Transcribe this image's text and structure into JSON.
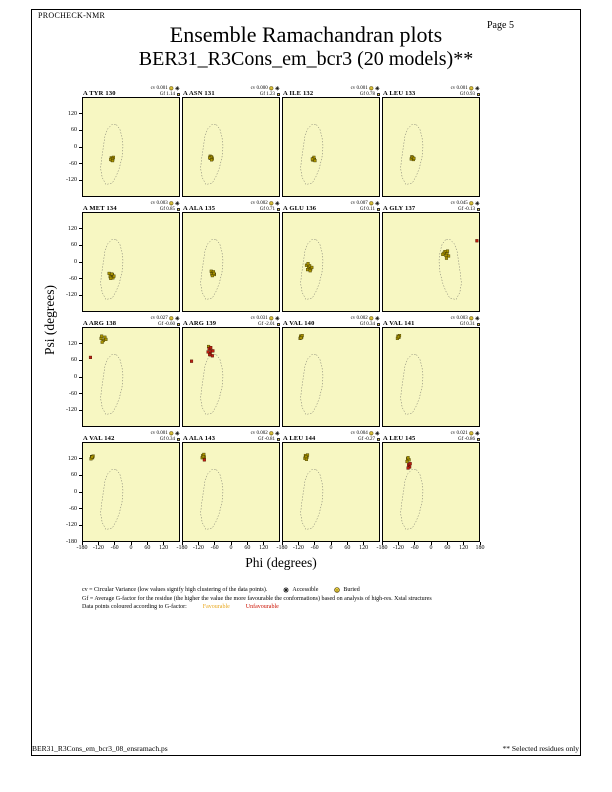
{
  "page": {
    "header_label": "PROCHECK-NMR",
    "page_number": "Page 5",
    "title": "Ensemble Ramachandran plots",
    "subtitle": "BER31_R3Cons_em_bcr3 (20 models)**",
    "footer_left": "BER31_R3Cons_em_bcr3_08_ensramach.ps",
    "footer_right": "** Selected residues only"
  },
  "axes": {
    "x_label": "Phi (degrees)",
    "y_label": "Psi (degrees)",
    "x_ticks": [
      -180,
      -120,
      -60,
      0,
      60,
      120
    ],
    "x_final_tick": 180,
    "y_ticks": [
      120,
      60,
      0,
      -60,
      -120
    ],
    "y_final_tick": -180
  },
  "stats_labels": {
    "cv": "cv",
    "gf": "Gf"
  },
  "legend": {
    "cv_line": "cv = Circular Variance (low values signify high clustering of the data points).",
    "accessible_label": "Accessible",
    "buried_label": "Buried",
    "gf_line": "Gf = Average G-factor for the residue (the higher the value the more favourable the conformations)  based on analysis of high-res. Xstal structures",
    "colour_line": "Data points coloured according to G-factor:",
    "favourable_label": "Favourable",
    "unfavourable_label": "Unfavourable"
  },
  "colors": {
    "plot_bg": "#f7f7c2",
    "favourable_point": "#a89200",
    "favourable_stroke": "#3f3800",
    "unfavourable_point": "#bb1f10",
    "unfavourable_stroke": "#4a0b00",
    "contour": "#555555",
    "icon_yellow": "#f0d840",
    "favourable_text": "#e8a820",
    "unfavourable_text": "#cc1100"
  },
  "chart_data": {
    "type": "scatter",
    "title": "Ensemble Ramachandran plots",
    "subtitle": "BER31_R3Cons_em_bcr3 (20 models)**",
    "xlabel": "Phi (degrees)",
    "ylabel": "Psi (degrees)",
    "xlim": [
      -180,
      180
    ],
    "ylim": [
      -180,
      180
    ],
    "grid": false,
    "regions": {
      "standard": [
        [
          -55,
          82
        ],
        [
          -42,
          66
        ],
        [
          -34,
          38
        ],
        [
          -30,
          4
        ],
        [
          -34,
          -40
        ],
        [
          -44,
          -78
        ],
        [
          -56,
          -108
        ],
        [
          -70,
          -132
        ],
        [
          -94,
          -138
        ],
        [
          -108,
          -112
        ],
        [
          -114,
          -78
        ],
        [
          -110,
          -42
        ],
        [
          -104,
          -2
        ],
        [
          -98,
          38
        ],
        [
          -88,
          66
        ],
        [
          -72,
          82
        ]
      ],
      "glycine": [
        [
          55,
          82
        ],
        [
          42,
          66
        ],
        [
          34,
          38
        ],
        [
          30,
          4
        ],
        [
          34,
          -40
        ],
        [
          44,
          -78
        ],
        [
          56,
          -108
        ],
        [
          70,
          -132
        ],
        [
          94,
          -138
        ],
        [
          108,
          -112
        ],
        [
          114,
          -78
        ],
        [
          110,
          -42
        ],
        [
          104,
          -2
        ],
        [
          98,
          38
        ],
        [
          88,
          66
        ],
        [
          72,
          82
        ]
      ]
    },
    "plots": [
      {
        "name": "A TYR 130",
        "cv": "0.001",
        "gf": "1.14",
        "region": "standard",
        "points": [
          [
            -74,
            -40,
            "f"
          ],
          [
            -68,
            -44,
            "f"
          ],
          [
            -72,
            -48,
            "f"
          ],
          [
            -66,
            -38,
            "f"
          ],
          [
            -70,
            -43,
            "f"
          ],
          [
            -76,
            -46,
            "f"
          ],
          [
            -69,
            -50,
            "f"
          ]
        ]
      },
      {
        "name": "A ASN 131",
        "cv": "0.000",
        "gf": "1.23",
        "region": "standard",
        "points": [
          [
            -78,
            -34,
            "f"
          ],
          [
            -72,
            -38,
            "f"
          ],
          [
            -76,
            -42,
            "f"
          ],
          [
            -70,
            -44,
            "f"
          ],
          [
            -74,
            -36,
            "f"
          ],
          [
            -80,
            -40,
            "f"
          ],
          [
            -73,
            -47,
            "f"
          ]
        ]
      },
      {
        "name": "A ILE 132",
        "cv": "0.001",
        "gf": "0.78",
        "region": "standard",
        "points": [
          [
            -66,
            -42,
            "f"
          ],
          [
            -62,
            -46,
            "f"
          ],
          [
            -68,
            -48,
            "f"
          ],
          [
            -64,
            -38,
            "f"
          ],
          [
            -70,
            -44,
            "f"
          ],
          [
            -60,
            -50,
            "f"
          ]
        ]
      },
      {
        "name": "A LEU 133",
        "cv": "0.001",
        "gf": "0.93",
        "region": "standard",
        "points": [
          [
            -72,
            -36,
            "f"
          ],
          [
            -68,
            -40,
            "f"
          ],
          [
            -74,
            -44,
            "f"
          ],
          [
            -66,
            -46,
            "f"
          ],
          [
            -70,
            -38,
            "f"
          ],
          [
            -64,
            -42,
            "f"
          ]
        ]
      },
      {
        "name": "A MET 134",
        "cv": "0.003",
        "gf": "0.85",
        "region": "standard",
        "points": [
          [
            -82,
            -42,
            "f"
          ],
          [
            -74,
            -50,
            "f"
          ],
          [
            -68,
            -58,
            "f"
          ],
          [
            -78,
            -54,
            "f"
          ],
          [
            -70,
            -46,
            "f"
          ],
          [
            -64,
            -52,
            "f"
          ],
          [
            -76,
            -60,
            "f"
          ],
          [
            -72,
            -44,
            "f"
          ]
        ]
      },
      {
        "name": "A ALA 135",
        "cv": "0.002",
        "gf": "0.71",
        "region": "standard",
        "points": [
          [
            -74,
            -34,
            "f"
          ],
          [
            -68,
            -40,
            "f"
          ],
          [
            -62,
            -46,
            "f"
          ],
          [
            -72,
            -44,
            "f"
          ],
          [
            -66,
            -36,
            "f"
          ],
          [
            -70,
            -50,
            "f"
          ],
          [
            -64,
            -42,
            "f"
          ]
        ]
      },
      {
        "name": "A GLU 136",
        "cv": "0.007",
        "gf": "0.11",
        "region": "standard",
        "points": [
          [
            -92,
            -12,
            "f"
          ],
          [
            -84,
            -20,
            "f"
          ],
          [
            -76,
            -26,
            "f"
          ],
          [
            -88,
            -28,
            "f"
          ],
          [
            -80,
            -14,
            "f"
          ],
          [
            -72,
            -20,
            "f"
          ],
          [
            -86,
            -6,
            "f"
          ],
          [
            -78,
            -32,
            "f"
          ]
        ]
      },
      {
        "name": "A GLY 137",
        "cv": "0.045",
        "gf": "-0.13",
        "region": "glycine",
        "points": [
          [
            52,
            38,
            "f"
          ],
          [
            60,
            30,
            "f"
          ],
          [
            66,
            22,
            "f"
          ],
          [
            56,
            24,
            "f"
          ],
          [
            48,
            32,
            "f"
          ],
          [
            62,
            40,
            "f"
          ],
          [
            58,
            14,
            "f"
          ],
          [
            44,
            28,
            "f"
          ],
          [
            172,
            78,
            "u"
          ]
        ]
      },
      {
        "name": "A ARG 138",
        "cv": "0.027",
        "gf": "-0.60",
        "region": "standard",
        "points": [
          [
            -112,
            142,
            "f"
          ],
          [
            -104,
            134,
            "f"
          ],
          [
            -98,
            146,
            "f"
          ],
          [
            -108,
            128,
            "f"
          ],
          [
            -94,
            138,
            "f"
          ],
          [
            -110,
            150,
            "f"
          ],
          [
            -152,
            72,
            "u"
          ]
        ]
      },
      {
        "name": "A ARG 139",
        "cv": "0.031",
        "gf": "-2.01",
        "region": "standard",
        "points": [
          [
            -84,
            112,
            "f"
          ],
          [
            -82,
            104,
            "u"
          ],
          [
            -74,
            96,
            "u"
          ],
          [
            -78,
            86,
            "u"
          ],
          [
            -70,
            78,
            "u"
          ],
          [
            -86,
            92,
            "u"
          ],
          [
            -76,
            108,
            "u"
          ],
          [
            -68,
            96,
            "u"
          ],
          [
            -80,
            82,
            "u"
          ],
          [
            -148,
            58,
            "u"
          ]
        ]
      },
      {
        "name": "A VAL 140",
        "cv": "0.002",
        "gf": "0.34",
        "region": "standard",
        "points": [
          [
            -114,
            150,
            "f"
          ],
          [
            -110,
            146,
            "f"
          ],
          [
            -116,
            142,
            "f"
          ],
          [
            -108,
            152,
            "f"
          ],
          [
            -112,
            144,
            "f"
          ]
        ]
      },
      {
        "name": "A VAL 141",
        "cv": "0.003",
        "gf": "0.31",
        "region": "standard",
        "points": [
          [
            -124,
            150,
            "f"
          ],
          [
            -120,
            146,
            "f"
          ],
          [
            -126,
            142,
            "f"
          ],
          [
            -118,
            152,
            "f"
          ],
          [
            -122,
            148,
            "f"
          ]
        ]
      },
      {
        "name": "A VAL 142",
        "cv": "0.001",
        "gf": "0.34",
        "region": "standard",
        "points": [
          [
            -148,
            130,
            "f"
          ],
          [
            -144,
            126,
            "f"
          ],
          [
            -150,
            122,
            "f"
          ],
          [
            -142,
            132,
            "f"
          ],
          [
            -146,
            128,
            "f"
          ]
        ]
      },
      {
        "name": "A ALA 143",
        "cv": "0.002",
        "gf": "-0.81",
        "region": "standard",
        "points": [
          [
            -106,
            134,
            "f"
          ],
          [
            -100,
            128,
            "f"
          ],
          [
            -108,
            126,
            "f"
          ],
          [
            -102,
            138,
            "f"
          ],
          [
            -104,
            130,
            "f"
          ],
          [
            -100,
            118,
            "u"
          ]
        ]
      },
      {
        "name": "A LEU 144",
        "cv": "0.004",
        "gf": "-0.27",
        "region": "standard",
        "points": [
          [
            -96,
            134,
            "f"
          ],
          [
            -90,
            128,
            "f"
          ],
          [
            -98,
            124,
            "f"
          ],
          [
            -88,
            136,
            "f"
          ],
          [
            -94,
            130,
            "f"
          ],
          [
            -92,
            120,
            "f"
          ]
        ]
      },
      {
        "name": "A LEU 145",
        "cv": "0.021",
        "gf": "-0.86",
        "region": "standard",
        "points": [
          [
            -88,
            122,
            "f"
          ],
          [
            -82,
            118,
            "f"
          ],
          [
            -90,
            112,
            "f"
          ],
          [
            -86,
            126,
            "f"
          ],
          [
            -84,
            100,
            "u"
          ],
          [
            -80,
            92,
            "u"
          ],
          [
            -86,
            88,
            "u"
          ],
          [
            -78,
            104,
            "u"
          ]
        ]
      }
    ]
  }
}
